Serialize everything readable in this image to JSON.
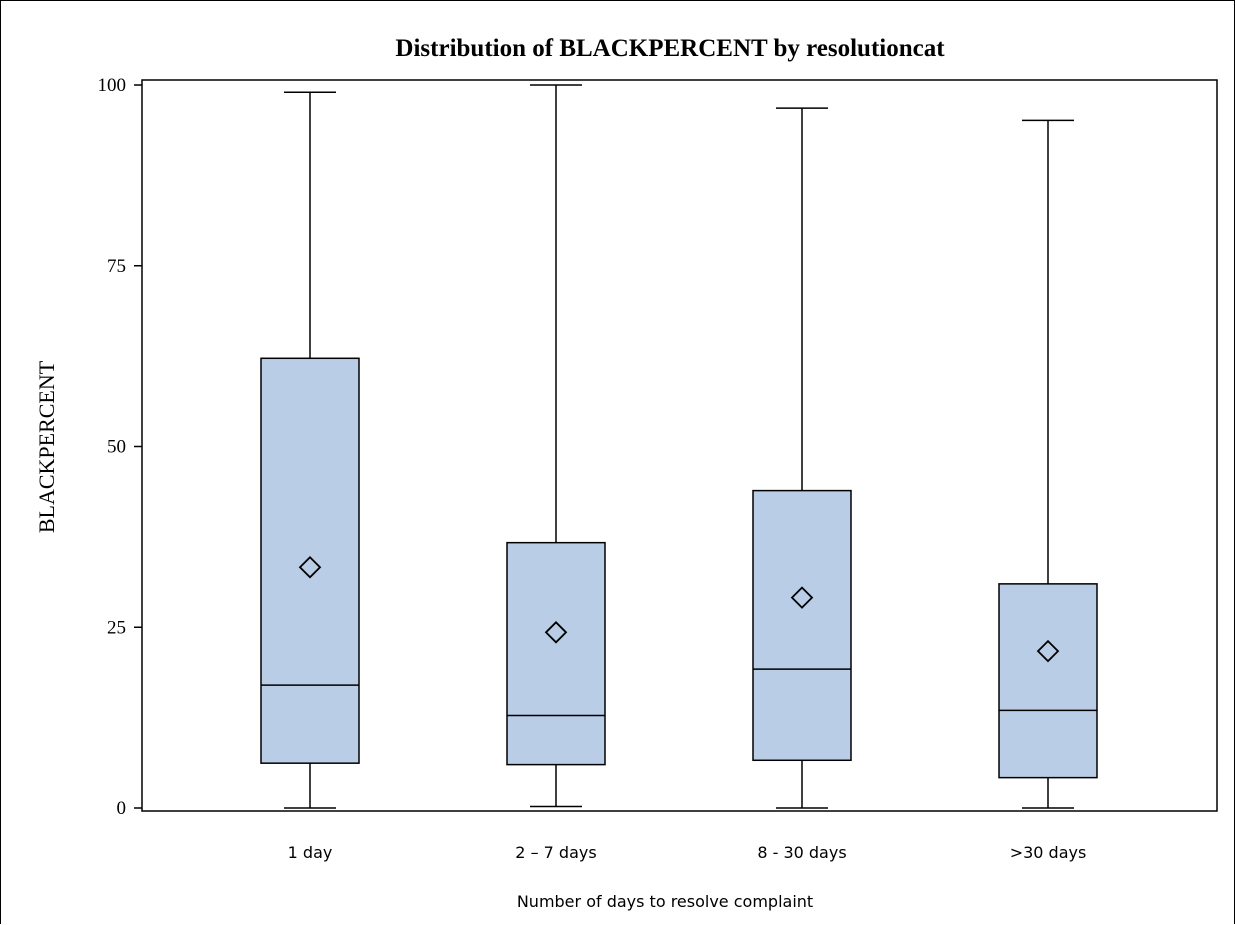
{
  "chart_data": {
    "type": "box",
    "title": "Distribution of BLACKPERCENT by resolutioncat",
    "xlabel": "Number of days to resolve complaint",
    "ylabel": "BLACKPERCENT",
    "ylim": [
      0,
      100
    ],
    "yticks": [
      "0",
      "25",
      "50",
      "75",
      "100"
    ],
    "categories": [
      "1 day",
      "2 – 7 days",
      "8 - 30 days",
      ">30 days"
    ],
    "boxes": [
      {
        "min": 0,
        "q1": 6.2,
        "median": 17.0,
        "q3": 62.2,
        "max": 99.0,
        "mean": 33.3
      },
      {
        "min": 0.2,
        "q1": 6.0,
        "median": 12.8,
        "q3": 36.7,
        "max": 100,
        "mean": 24.3
      },
      {
        "min": 0,
        "q1": 6.6,
        "median": 19.2,
        "q3": 43.9,
        "max": 96.8,
        "mean": 29.1
      },
      {
        "min": 0,
        "q1": 4.2,
        "median": 13.5,
        "q3": 31.0,
        "max": 95.1,
        "mean": 21.7
      }
    ],
    "box_fill": "#b9cde6",
    "line_color": "#000000",
    "grid": false
  }
}
